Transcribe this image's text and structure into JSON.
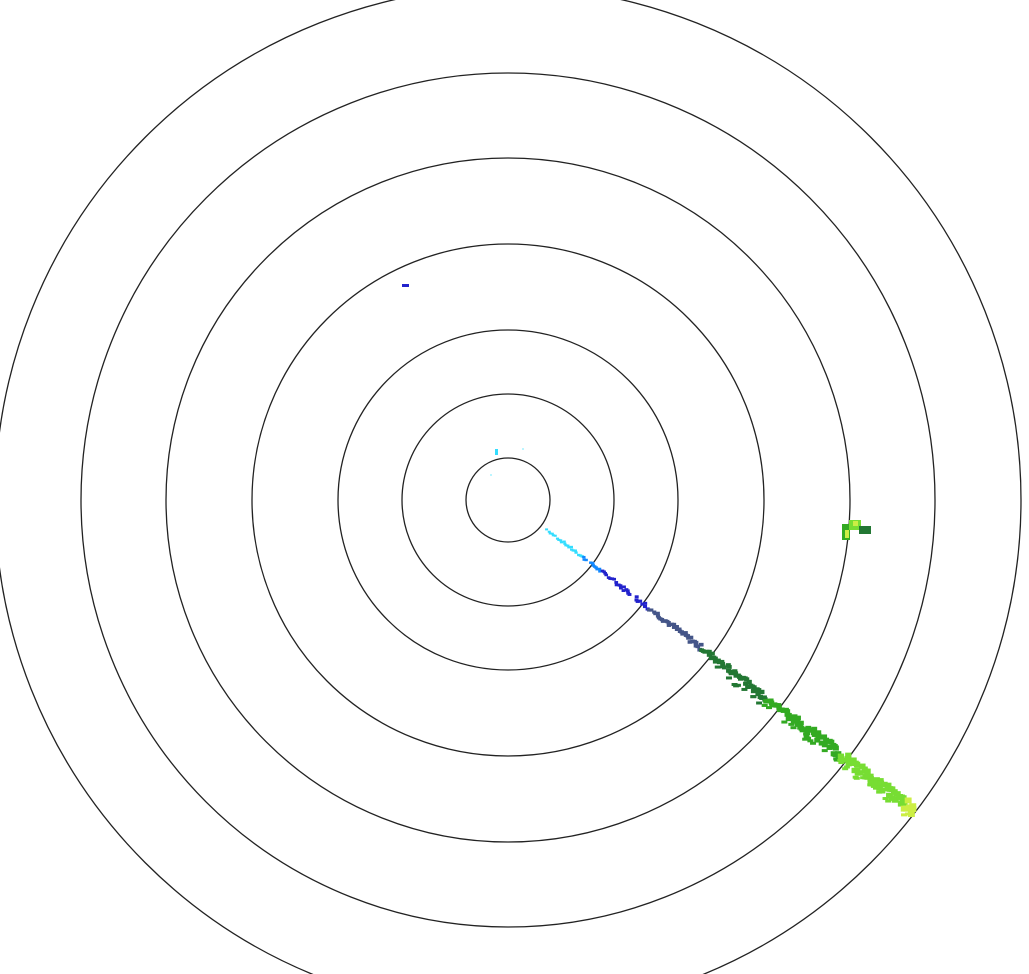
{
  "display": {
    "type": "radar-ppi",
    "ring_count": 7,
    "ring_color": "#222222",
    "background": "#ffffff"
  },
  "echo_colors": {
    "near": "#33ddff",
    "light_blue": "#1188ff",
    "blue": "#2222cc",
    "slate": "#445588",
    "dark_green": "#227733",
    "green": "#33aa22",
    "light_green": "#77dd33",
    "yellow_green": "#ccee44"
  }
}
